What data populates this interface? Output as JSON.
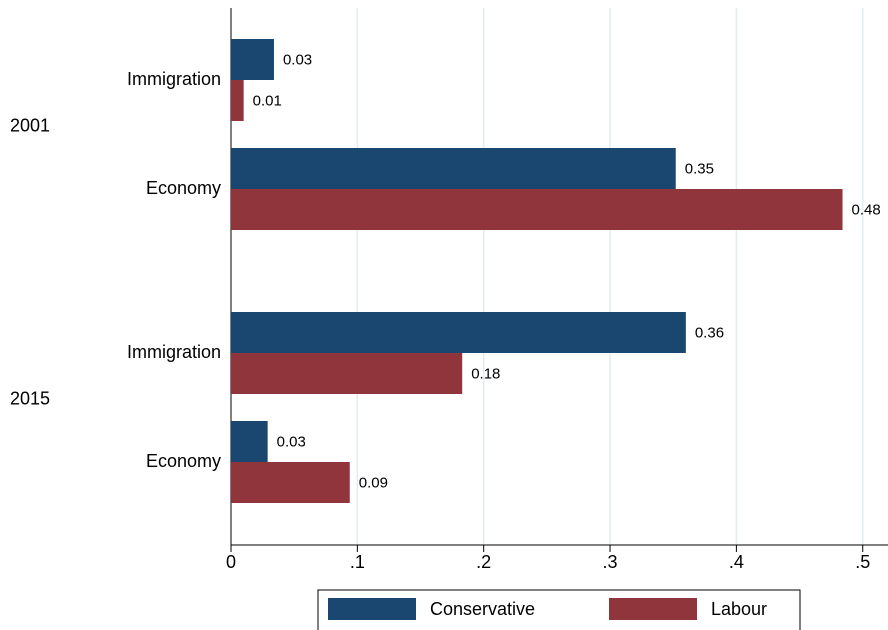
{
  "chart_data": {
    "type": "bar",
    "orientation": "horizontal",
    "groups": [
      "2001",
      "2015"
    ],
    "categories": [
      "Immigration",
      "Economy",
      "Immigration",
      "Economy"
    ],
    "series": [
      {
        "name": "Conservative",
        "color": "#1a476f",
        "values": [
          0.034,
          0.352,
          0.36,
          0.029
        ],
        "value_labels": [
          "0.03",
          "0.35",
          "0.36",
          "0.03"
        ]
      },
      {
        "name": "Labour",
        "color": "#90353b",
        "values": [
          0.01,
          0.484,
          0.183,
          0.094
        ],
        "value_labels": [
          "0.01",
          "0.48",
          "0.18",
          "0.09"
        ]
      }
    ],
    "xlim": [
      0,
      0.52
    ],
    "xticks": [
      0,
      {
        "value": 0.1,
        "label": ".1"
      },
      {
        "value": 0.2,
        "label": ".2"
      },
      {
        "value": 0.3,
        "label": ".3"
      },
      {
        "value": 0.4,
        "label": ".4"
      },
      {
        "value": 0.5,
        "label": ".5"
      }
    ],
    "grid": true,
    "legend": "bottom"
  }
}
